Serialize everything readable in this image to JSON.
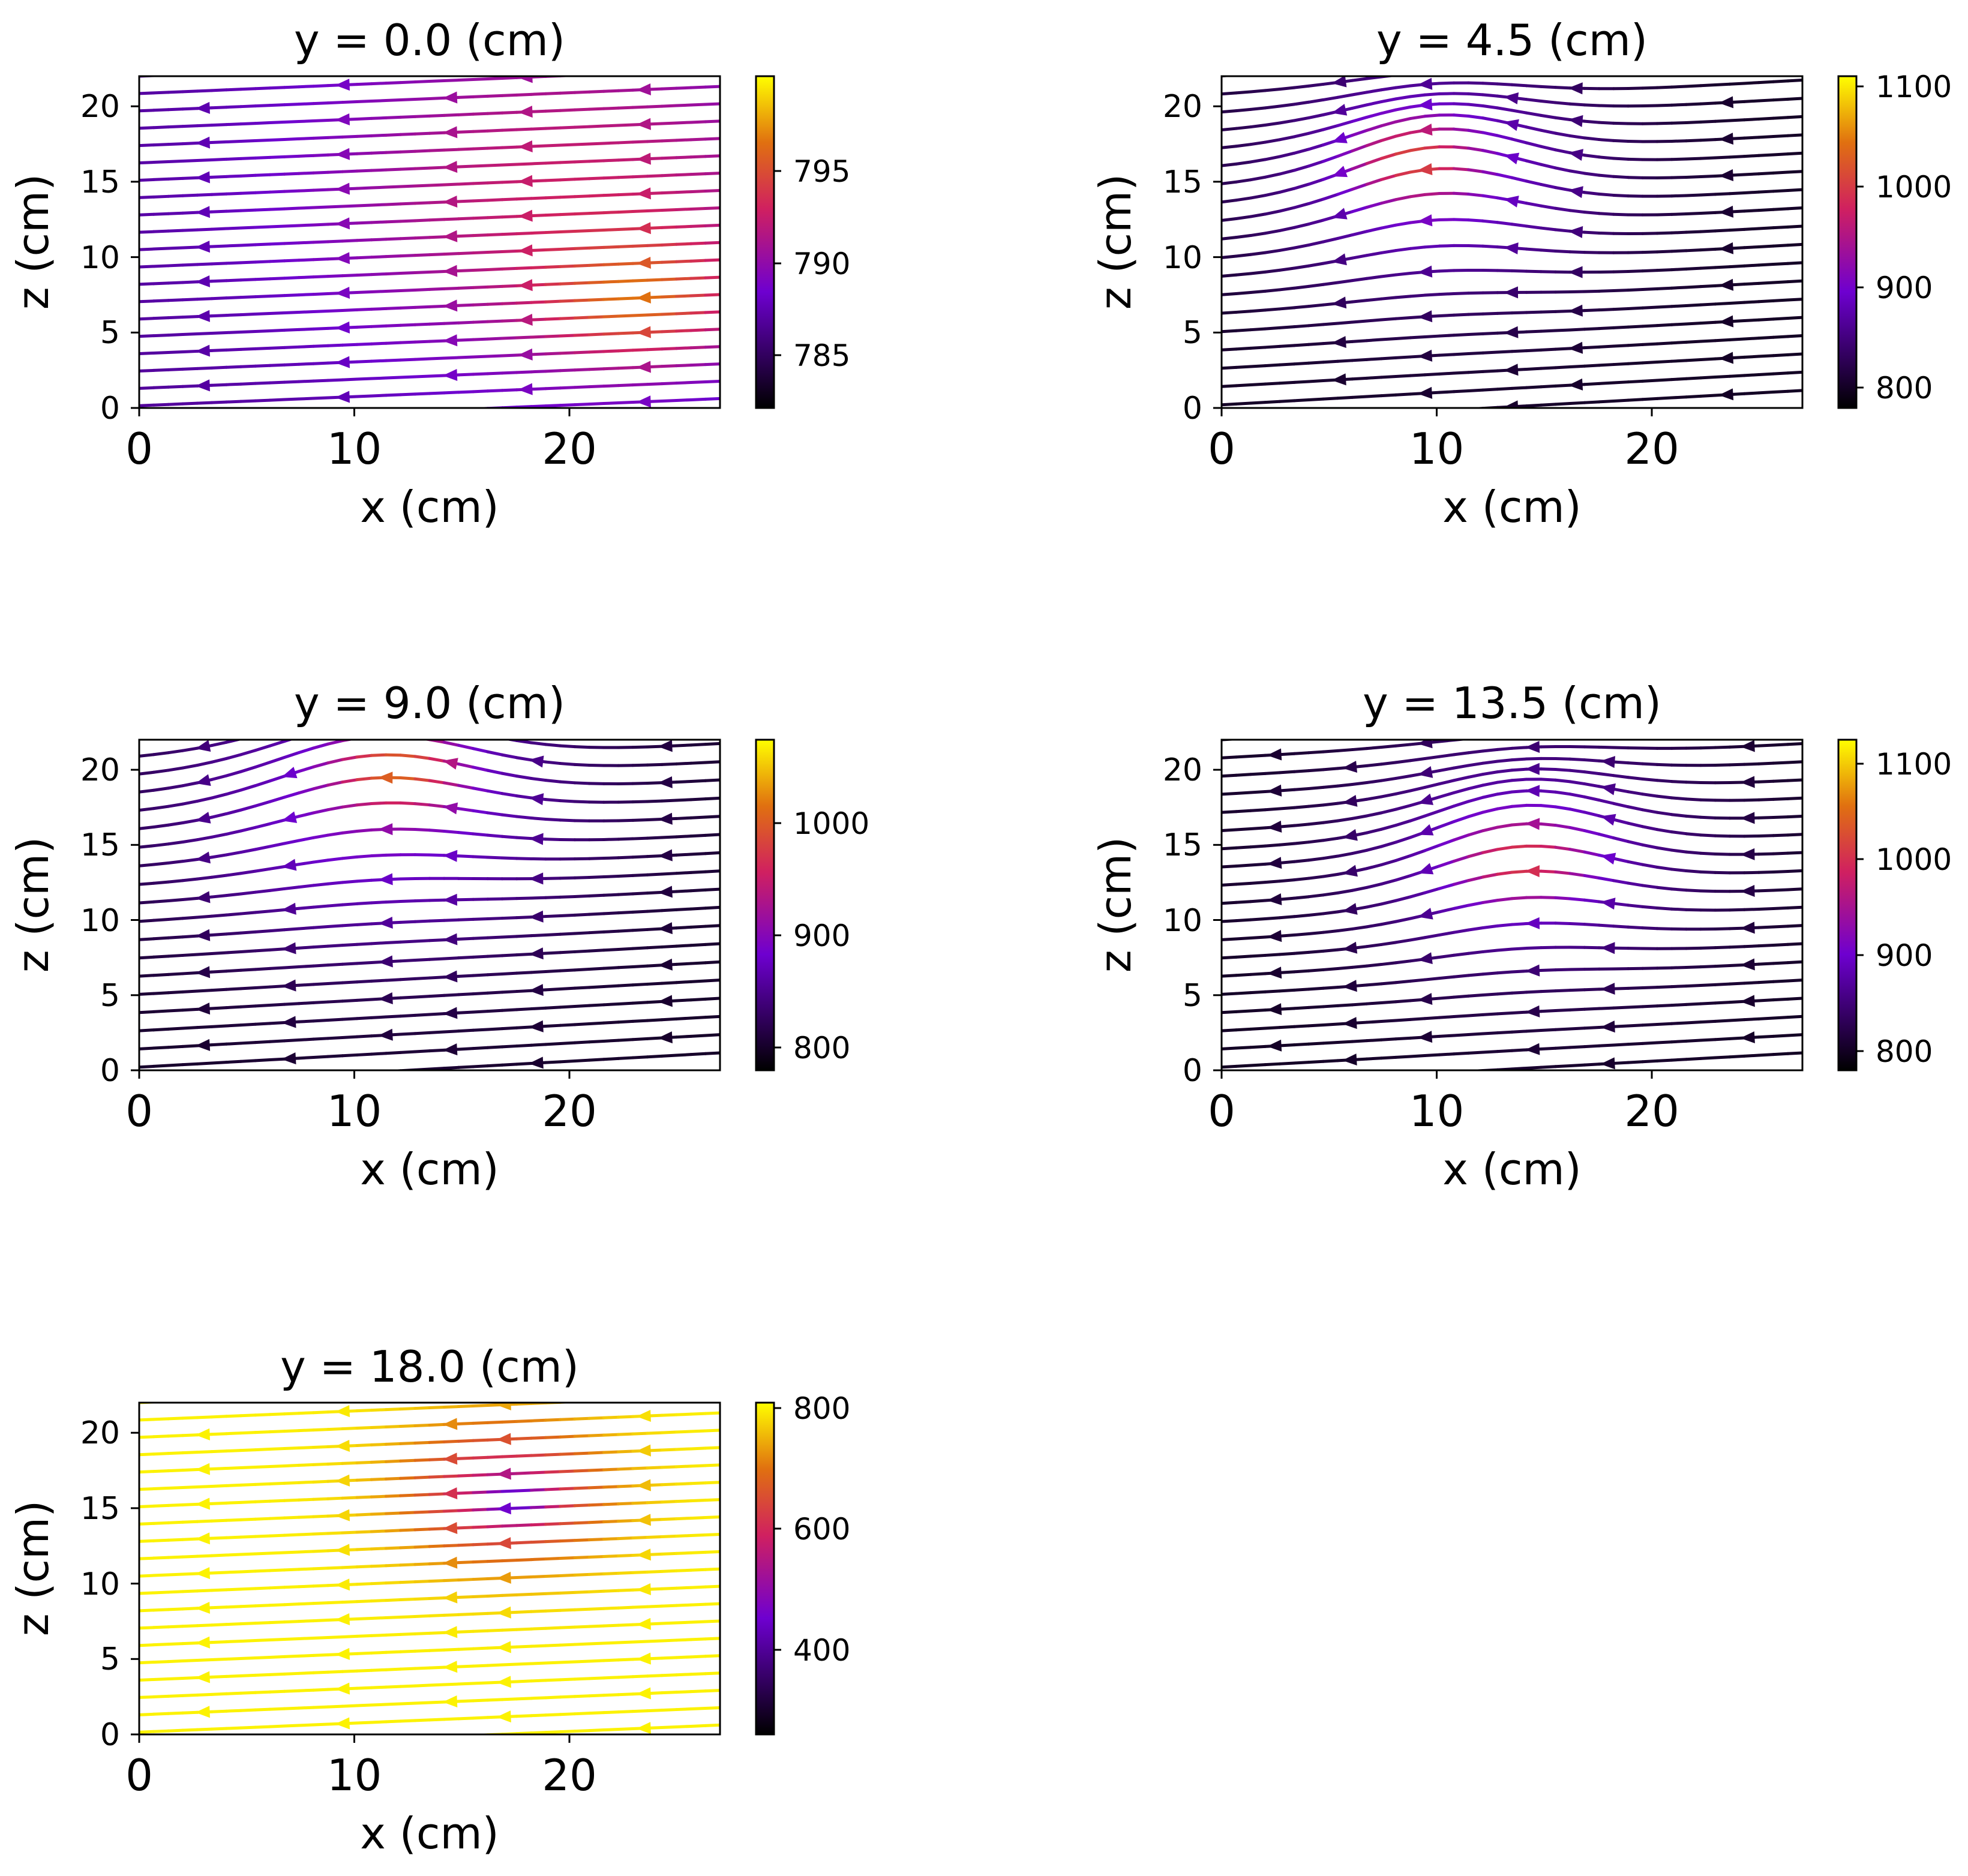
{
  "figure": {
    "colormap": "gnuplot",
    "colormap_stops": [
      "#000000",
      "#6e00d0",
      "#d02060",
      "#e07010",
      "#ffff00"
    ]
  },
  "chart_data": [
    {
      "type": "streamplot",
      "title": "y = 0.0 (cm)",
      "xlabel": "x (cm)",
      "ylabel": "z (cm)",
      "xlim": [
        0,
        27
      ],
      "ylim": [
        0,
        22
      ],
      "xticks": [
        0,
        10,
        20
      ],
      "yticks": [
        0,
        5,
        10,
        15,
        20
      ],
      "flow_direction": "-x",
      "slope": 0.06,
      "n_lines": 21,
      "colorbar": {
        "min": 781.5,
        "max": 799.5,
        "ticks": [
          785,
          790,
          795
        ]
      },
      "color_field": {
        "base": 786,
        "hotspots": [
          {
            "x": 20,
            "z": 14,
            "r": 9,
            "value": 792
          },
          {
            "x": 23,
            "z": 7.5,
            "r": 3,
            "value": 796
          }
        ]
      },
      "arrow_x": [
        3,
        9.5,
        14.5,
        18,
        23.5
      ]
    },
    {
      "type": "streamplot",
      "title": "y = 4.5 (cm)",
      "xlabel": "x (cm)",
      "ylabel": "z (cm)",
      "xlim": [
        0,
        27
      ],
      "ylim": [
        0,
        22
      ],
      "xticks": [
        0,
        10,
        20
      ],
      "yticks": [
        0,
        5,
        10,
        15,
        20
      ],
      "flow_direction": "-x",
      "slope": 0.08,
      "n_lines": 20,
      "bump": {
        "x": 10,
        "z": 14,
        "width": 4,
        "height": 3
      },
      "colorbar": {
        "min": 780,
        "max": 1110,
        "ticks": [
          800,
          900,
          1000,
          1100
        ]
      },
      "color_field": {
        "base": 800,
        "hotspots": [
          {
            "x": 10,
            "z": 15,
            "r": 6,
            "value": 900
          },
          {
            "x": 9,
            "z": 16.5,
            "r": 2,
            "value": 1010
          }
        ]
      },
      "arrow_x": [
        5.5,
        9.5,
        13.5,
        16.5,
        23.5
      ]
    },
    {
      "type": "streamplot",
      "title": "y = 9.0 (cm)",
      "xlabel": "x (cm)",
      "ylabel": "z (cm)",
      "xlim": [
        0,
        27
      ],
      "ylim": [
        0,
        22
      ],
      "xticks": [
        0,
        10,
        20
      ],
      "yticks": [
        0,
        5,
        10,
        15,
        20
      ],
      "flow_direction": "-x",
      "slope": 0.08,
      "n_lines": 20,
      "bump": {
        "x": 11,
        "z": 18,
        "width": 4.5,
        "height": 3
      },
      "colorbar": {
        "min": 780,
        "max": 1075,
        "ticks": [
          800,
          900,
          1000
        ]
      },
      "color_field": {
        "base": 800,
        "hotspots": [
          {
            "x": 11,
            "z": 17,
            "r": 7,
            "value": 895
          },
          {
            "x": 12,
            "z": 20,
            "r": 2,
            "value": 1010
          }
        ]
      },
      "arrow_x": [
        3,
        7,
        11.5,
        14.5,
        18.5,
        24.5
      ]
    },
    {
      "type": "streamplot",
      "title": "y = 13.5 (cm)",
      "xlabel": "x (cm)",
      "ylabel": "z (cm)",
      "xlim": [
        0,
        27
      ],
      "ylim": [
        0,
        22
      ],
      "xticks": [
        0,
        10,
        20
      ],
      "yticks": [
        0,
        5,
        10,
        15,
        20
      ],
      "flow_direction": "-x",
      "slope": 0.08,
      "n_lines": 20,
      "bump": {
        "x": 14,
        "z": 13,
        "width": 4,
        "height": 3
      },
      "colorbar": {
        "min": 780,
        "max": 1125,
        "ticks": [
          800,
          900,
          1000,
          1100
        ]
      },
      "color_field": {
        "base": 800,
        "hotspots": [
          {
            "x": 14,
            "z": 14,
            "r": 6,
            "value": 900
          },
          {
            "x": 14,
            "z": 14,
            "r": 2,
            "value": 1010
          }
        ]
      },
      "arrow_x": [
        2.5,
        6,
        9.5,
        14.5,
        18,
        24.5
      ]
    },
    {
      "type": "streamplot",
      "title": "y = 18.0 (cm)",
      "xlabel": "x (cm)",
      "ylabel": "z (cm)",
      "xlim": [
        0,
        27
      ],
      "ylim": [
        0,
        22
      ],
      "xticks": [
        0,
        10,
        20
      ],
      "yticks": [
        0,
        5,
        10,
        15,
        20
      ],
      "flow_direction": "-x",
      "slope": 0.06,
      "n_lines": 21,
      "colorbar": {
        "min": 260,
        "max": 810,
        "ticks": [
          400,
          600,
          800
        ]
      },
      "color_field": {
        "base": 800,
        "hotspots": [
          {
            "x": 17,
            "z": 16,
            "r": 3.5,
            "value": 560
          },
          {
            "x": 17.5,
            "z": 15.5,
            "r": 1,
            "value": 420
          }
        ]
      },
      "arrow_x": [
        3,
        9.5,
        14.5,
        17,
        23.5
      ]
    }
  ]
}
